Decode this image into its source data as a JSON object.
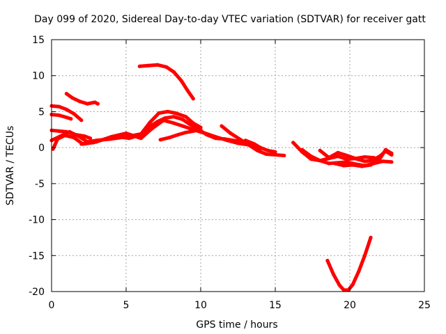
{
  "chart_data": {
    "type": "line",
    "title": "Day 099 of 2020, Sidereal Day-to-day VTEC variation (SDTVAR) for receiver gatt",
    "xlabel": "GPS time / hours",
    "ylabel": "SDTVAR / TECUs",
    "xlim": [
      0,
      25
    ],
    "ylim": [
      -20,
      15
    ],
    "xticks": [
      0,
      5,
      10,
      15,
      20,
      25
    ],
    "yticks": [
      -20,
      -15,
      -10,
      -5,
      0,
      5,
      10,
      15
    ],
    "grid": true,
    "legend": "none",
    "color": "#ff0000",
    "series": [
      {
        "name": "s1",
        "x": [
          5.9,
          6.5,
          7.1,
          7.7,
          8.2,
          8.7,
          9.1,
          9.5
        ],
        "y": [
          11.3,
          11.4,
          11.5,
          11.2,
          10.5,
          9.3,
          8.0,
          6.8
        ]
      },
      {
        "name": "s2",
        "x": [
          1.0,
          1.4,
          1.9,
          2.4,
          2.9,
          3.1
        ],
        "y": [
          7.5,
          6.9,
          6.4,
          6.1,
          6.3,
          6.1
        ]
      },
      {
        "name": "s3",
        "x": [
          0.0,
          0.5,
          1.0,
          1.5,
          2.0
        ],
        "y": [
          5.8,
          5.7,
          5.3,
          4.7,
          3.8
        ]
      },
      {
        "name": "s4",
        "x": [
          0.0,
          0.5,
          1.0,
          1.3
        ],
        "y": [
          4.6,
          4.5,
          4.2,
          4.0
        ]
      },
      {
        "name": "s5",
        "x": [
          0.0,
          0.5,
          1.0,
          1.6,
          2.2,
          2.6
        ],
        "y": [
          2.4,
          2.3,
          2.2,
          1.8,
          1.6,
          1.3
        ]
      },
      {
        "name": "s6",
        "x": [
          0.0,
          0.6,
          1.2,
          1.8,
          2.4,
          3.0,
          4.0,
          5.0,
          6.0,
          6.6,
          7.2,
          7.8,
          8.3,
          9.0,
          9.5,
          10.0
        ],
        "y": [
          1.0,
          1.6,
          2.2,
          1.6,
          0.8,
          1.0,
          1.2,
          1.5,
          1.9,
          3.5,
          4.8,
          5.0,
          4.8,
          4.3,
          3.4,
          2.8
        ]
      },
      {
        "name": "s7",
        "x": [
          0.1,
          0.4,
          0.9,
          1.5,
          2.1,
          2.8,
          3.6,
          4.4,
          5.2,
          6.0,
          6.5,
          7.1,
          7.6,
          8.2,
          8.8,
          9.3,
          9.8,
          10.4,
          11.0,
          11.6,
          12.2,
          12.8,
          13.4
        ],
        "y": [
          -0.2,
          1.2,
          1.7,
          1.4,
          0.5,
          0.7,
          1.2,
          1.5,
          1.3,
          1.8,
          2.8,
          3.6,
          4.1,
          4.3,
          3.9,
          3.2,
          2.6,
          1.8,
          1.3,
          1.2,
          1.0,
          0.8,
          0.6
        ]
      },
      {
        "name": "s8",
        "x": [
          2.0,
          3.0,
          4.0,
          5.0,
          6.0,
          6.7,
          7.5,
          8.2,
          8.8,
          9.5,
          10.3,
          11.0,
          11.8,
          12.5,
          13.2,
          14.0
        ],
        "y": [
          0.5,
          0.8,
          1.5,
          2.0,
          1.3,
          2.6,
          3.8,
          3.4,
          3.0,
          2.5,
          2.0,
          1.5,
          1.0,
          0.6,
          0.4,
          -0.2
        ]
      },
      {
        "name": "s9",
        "x": [
          7.3,
          7.9,
          8.5,
          9.0,
          9.5,
          10.0
        ],
        "y": [
          1.1,
          1.4,
          1.8,
          2.1,
          2.3,
          2.5
        ]
      },
      {
        "name": "s10",
        "x": [
          11.4,
          12.0,
          12.6,
          13.2,
          13.8,
          14.4,
          15.0,
          15.6
        ],
        "y": [
          3.0,
          2.0,
          1.2,
          0.4,
          -0.4,
          -0.9,
          -1.0,
          -1.1
        ]
      },
      {
        "name": "s11",
        "x": [
          13.0,
          13.6,
          14.0,
          14.5,
          15.0
        ],
        "y": [
          1.0,
          0.5,
          0.0,
          -0.4,
          -0.6
        ]
      },
      {
        "name": "s12",
        "x": [
          16.2,
          16.8,
          17.4,
          18.0,
          18.6,
          19.2,
          19.8,
          20.4,
          21.0,
          21.6,
          22.0
        ],
        "y": [
          0.7,
          -0.6,
          -1.6,
          -1.8,
          -1.5,
          -1.2,
          -1.6,
          -1.5,
          -1.3,
          -1.4,
          -1.7
        ]
      },
      {
        "name": "s13",
        "x": [
          16.8,
          17.4,
          18.0,
          18.6,
          19.2,
          19.8,
          20.4,
          21.0,
          21.6,
          22.2,
          22.8
        ],
        "y": [
          -0.3,
          -1.2,
          -1.8,
          -2.2,
          -2.1,
          -2.0,
          -2.3,
          -2.5,
          -2.2,
          -1.9,
          -2.0
        ]
      },
      {
        "name": "s14",
        "x": [
          18.0,
          18.6,
          19.2,
          19.8,
          20.5,
          21.0,
          21.5,
          22.0,
          22.4,
          22.8
        ],
        "y": [
          -0.4,
          -1.4,
          -0.7,
          -1.1,
          -1.6,
          -1.9,
          -1.8,
          -1.2,
          -0.5,
          -1.0
        ]
      },
      {
        "name": "s15",
        "x": [
          19.0,
          19.6,
          20.2,
          20.8,
          21.4,
          22.0,
          22.4,
          22.8
        ],
        "y": [
          -2.2,
          -2.5,
          -2.4,
          -2.6,
          -2.4,
          -1.6,
          -0.3,
          -0.8
        ]
      },
      {
        "name": "s16",
        "x": [
          18.5,
          18.9,
          19.3,
          19.6,
          19.9,
          20.2,
          20.6,
          21.0,
          21.4
        ],
        "y": [
          -15.7,
          -17.6,
          -19.1,
          -19.8,
          -19.8,
          -19.0,
          -17.2,
          -15.0,
          -12.5
        ]
      }
    ]
  }
}
